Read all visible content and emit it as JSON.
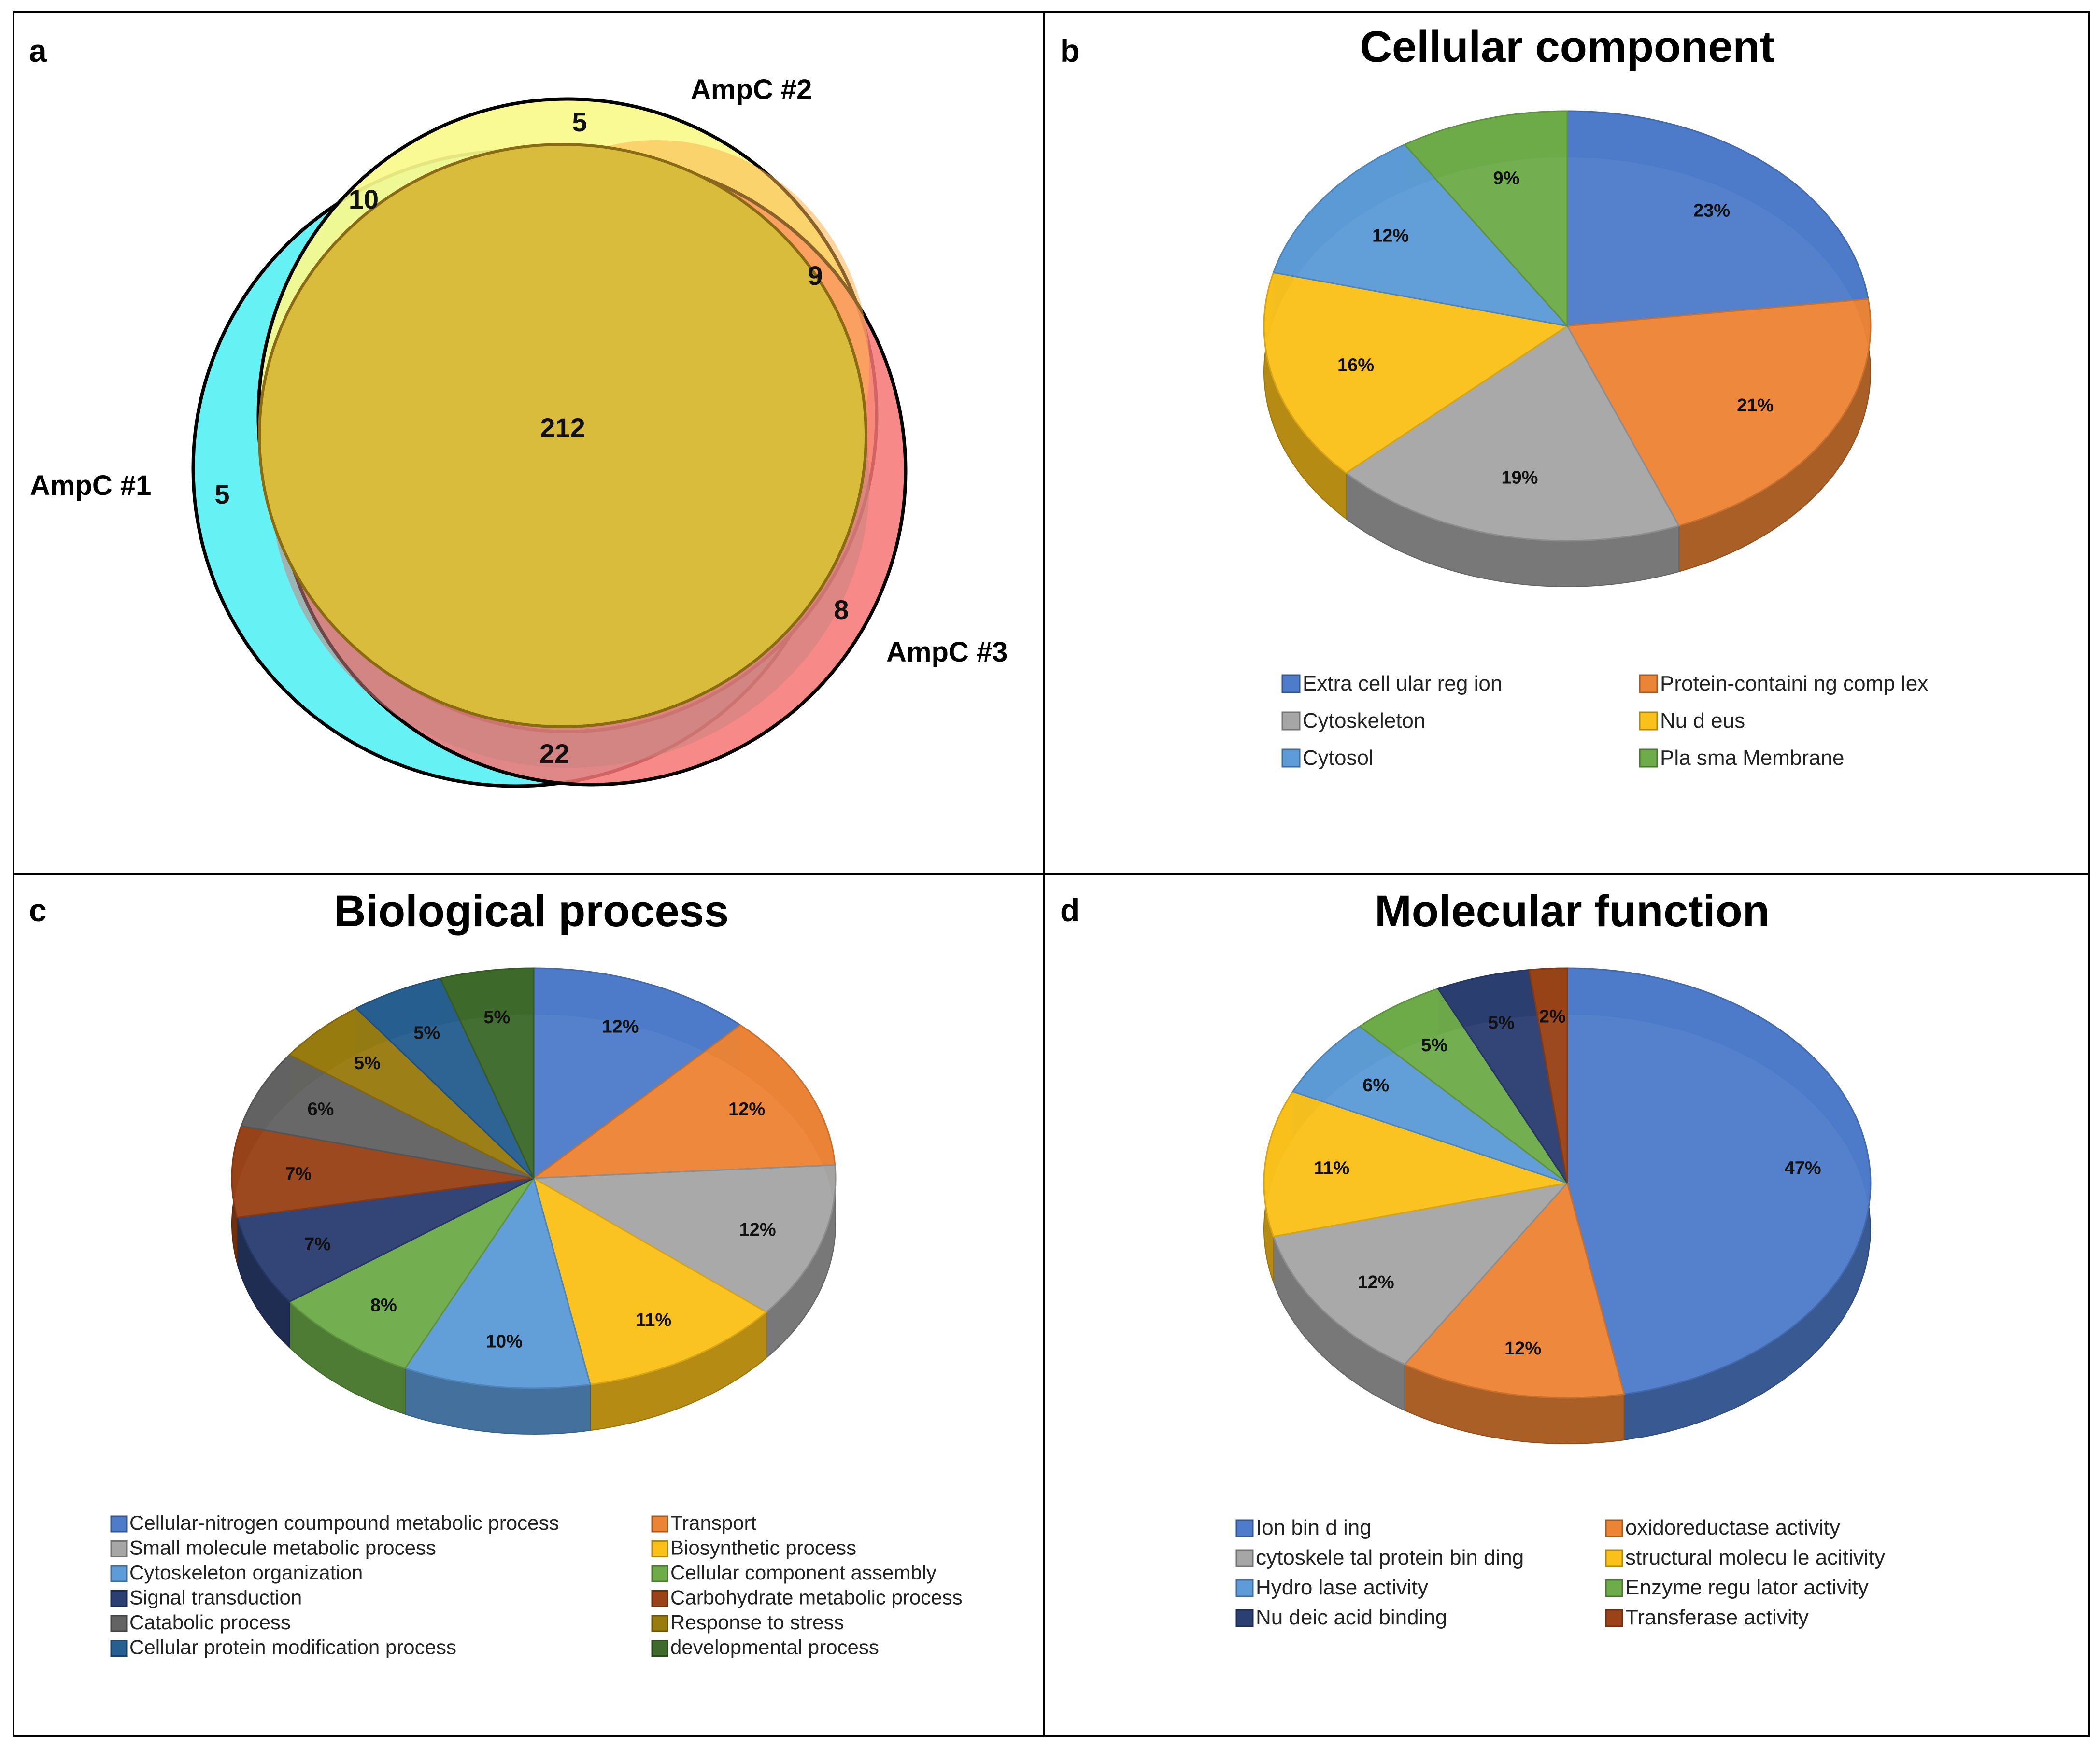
{
  "panels": {
    "a": {
      "letter": "a",
      "sets": [
        "AmpC #1",
        "AmpC #2",
        "AmpC #3"
      ],
      "regions": {
        "only1": "5",
        "only2": "5",
        "only3": "8",
        "s12": "10",
        "s23": "9",
        "s13": "22",
        "all": "212"
      }
    },
    "b": {
      "letter": "b"
    },
    "c": {
      "letter": "c"
    },
    "d": {
      "letter": "d"
    }
  },
  "chart_data": [
    {
      "panel": "a",
      "type": "venn",
      "sets": [
        "AmpC #1",
        "AmpC #2",
        "AmpC #3"
      ],
      "regions": [
        {
          "sets": [
            "AmpC #1"
          ],
          "value": 5
        },
        {
          "sets": [
            "AmpC #2"
          ],
          "value": 5
        },
        {
          "sets": [
            "AmpC #3"
          ],
          "value": 8
        },
        {
          "sets": [
            "AmpC #1",
            "AmpC #2"
          ],
          "value": 10
        },
        {
          "sets": [
            "AmpC #2",
            "AmpC #3"
          ],
          "value": 9
        },
        {
          "sets": [
            "AmpC #1",
            "AmpC #3"
          ],
          "value": 22
        },
        {
          "sets": [
            "AmpC #1",
            "AmpC #2",
            "AmpC #3"
          ],
          "value": 212
        }
      ],
      "colors": {
        "AmpC #1": "#66f2f5",
        "AmpC #2": "#fafa8c",
        "AmpC #3": "#f77474",
        "all": "#d9bc3c"
      }
    },
    {
      "panel": "b",
      "type": "pie",
      "title": "Cellular component",
      "legend_position": "bottom",
      "slices": [
        {
          "label": "Extracellular region",
          "legend": "Extra cell ular reg ion",
          "value": 23,
          "text": "23%",
          "color": "#4e7cca"
        },
        {
          "label": "Protein-containing complex",
          "legend": "Protein-containi ng comp lex",
          "value": 21,
          "text": "21%",
          "color": "#ec8436"
        },
        {
          "label": "Cytoskeleton",
          "legend": "Cytoskeleton",
          "value": 19,
          "text": "19%",
          "color": "#a6a6a6"
        },
        {
          "label": "Nucleus",
          "legend": "Nu d eus",
          "value": 16,
          "text": "16%",
          "color": "#fbc11b"
        },
        {
          "label": "Cytosol",
          "legend": "Cytosol",
          "value": 12,
          "text": "12%",
          "color": "#5d9cd8"
        },
        {
          "label": "Plasma Membrane",
          "legend": "Pla sma Membrane",
          "value": 9,
          "text": "9%",
          "color": "#6eac4a"
        }
      ]
    },
    {
      "panel": "c",
      "type": "pie",
      "title": "Biological process",
      "legend_position": "bottom",
      "slices": [
        {
          "label": "Cellular-nitrogen coumpound metabolic process",
          "legend": "Cellular-nitrogen coumpound metabolic process",
          "value": 12,
          "text": "12%",
          "color": "#4e7cca"
        },
        {
          "label": "Transport",
          "legend": "Transport",
          "value": 12,
          "text": "12%",
          "color": "#ec8436"
        },
        {
          "label": "Small molecule metabolic process",
          "legend": "Small molecule metabolic process",
          "value": 12,
          "text": "12%",
          "color": "#a6a6a6"
        },
        {
          "label": "Biosynthetic process",
          "legend": "Biosynthetic process",
          "value": 11,
          "text": "11%",
          "color": "#fbc11b"
        },
        {
          "label": "Cytoskeleton organization",
          "legend": "Cytoskeleton organization",
          "value": 10,
          "text": "10%",
          "color": "#5d9cd8"
        },
        {
          "label": "Cellular component assembly",
          "legend": "Cellular component assembly",
          "value": 8,
          "text": "8%",
          "color": "#6eac4a"
        },
        {
          "label": "Signal transduction",
          "legend": "Signal transduction",
          "value": 7,
          "text": "7%",
          "color": "#2b3f72"
        },
        {
          "label": "Carbohydrate metabolic process",
          "legend": "Carbohydrate metabolic process",
          "value": 7,
          "text": "7%",
          "color": "#9a4318"
        },
        {
          "label": "Catabolic process",
          "legend": "Catabolic process",
          "value": 6,
          "text": "6%",
          "color": "#636363"
        },
        {
          "label": "Response to stress",
          "legend": "Response to stress",
          "value": 5,
          "text": "5%",
          "color": "#997c0f"
        },
        {
          "label": "Cellular protein modification process",
          "legend": "Cellular protein modification process",
          "value": 5,
          "text": "5%",
          "color": "#265f91"
        },
        {
          "label": "developmental process",
          "legend": "developmental process",
          "value": 5,
          "text": "5%",
          "color": "#3e6a2b"
        }
      ]
    },
    {
      "panel": "d",
      "type": "pie",
      "title": "Molecular function",
      "legend_position": "bottom",
      "slices": [
        {
          "label": "Ion binding",
          "legend": "Ion bin d ing",
          "value": 47,
          "text": "47%",
          "color": "#4e7cca"
        },
        {
          "label": "oxidoreductase activity",
          "legend": "oxidoreductase activity",
          "value": 12,
          "text": "12%",
          "color": "#ec8436"
        },
        {
          "label": "cytoskeletal protein binding",
          "legend": "cytoskele tal protein bin ding",
          "value": 12,
          "text": "12%",
          "color": "#a6a6a6"
        },
        {
          "label": "structural molecule activity",
          "legend": "structural molecu le acitivity",
          "value": 11,
          "text": "11%",
          "color": "#fbc11b"
        },
        {
          "label": "Hydrolase activity",
          "legend": "Hydro lase activity",
          "value": 6,
          "text": "6%",
          "color": "#5d9cd8"
        },
        {
          "label": "Enzyme regulator activity",
          "legend": "Enzyme regu lator activity",
          "value": 5,
          "text": "5%",
          "color": "#6eac4a"
        },
        {
          "label": "Nucleic acid binding",
          "legend": "Nu deic acid binding",
          "value": 5,
          "text": "5%",
          "color": "#2b3f72"
        },
        {
          "label": "Transferase activity",
          "legend": "Transferase activity",
          "value": 2,
          "text": "2%",
          "color": "#9a4318"
        }
      ]
    }
  ]
}
